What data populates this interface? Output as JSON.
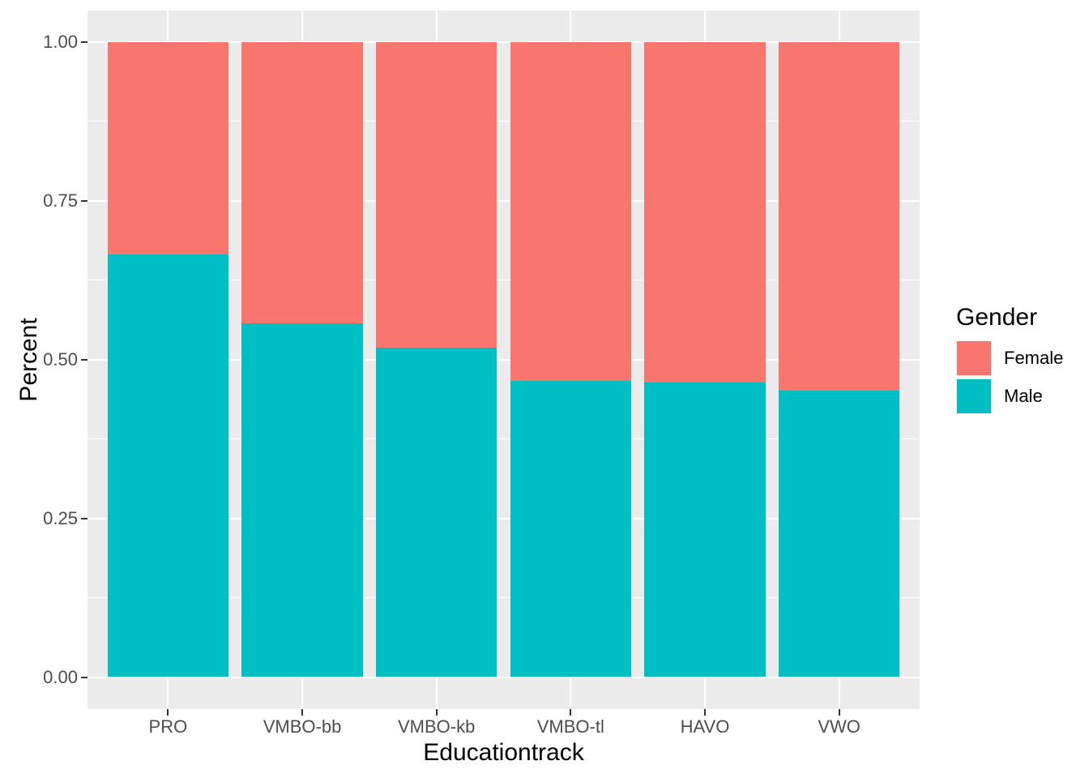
{
  "chart_data": {
    "type": "bar",
    "mode": "stacked",
    "title": "",
    "xlabel": "Educationtrack",
    "ylabel": "Percent",
    "categories": [
      "PRO",
      "VMBO-bb",
      "VMBO-kb",
      "VMBO-tl",
      "HAVO",
      "VWO"
    ],
    "series": [
      {
        "name": "Male",
        "color": "#00BFC4",
        "values": [
          0.666,
          0.557,
          0.519,
          0.467,
          0.464,
          0.451
        ]
      },
      {
        "name": "Female",
        "color": "#F8766D",
        "values": [
          0.334,
          0.443,
          0.481,
          0.533,
          0.536,
          0.549
        ]
      }
    ],
    "stack_total": 1.0,
    "ylim": [
      0,
      1
    ],
    "yticks": [
      0,
      0.25,
      0.5,
      0.75,
      1
    ],
    "ytick_labels": [
      "0.00",
      "0.25",
      "0.50",
      "0.75",
      "1.00"
    ],
    "grid": "major+minor",
    "legend_position": "right",
    "legend": {
      "title": "Gender",
      "entries": [
        {
          "label": "Female",
          "color": "#F8766D"
        },
        {
          "label": "Male",
          "color": "#00BFC4"
        }
      ]
    },
    "colors": {
      "panel_bg": "#EBEBEB",
      "grid": "#FFFFFF",
      "tick_mark": "#333333",
      "axis_text": "#4D4D4D",
      "title_text": "#000000"
    }
  }
}
